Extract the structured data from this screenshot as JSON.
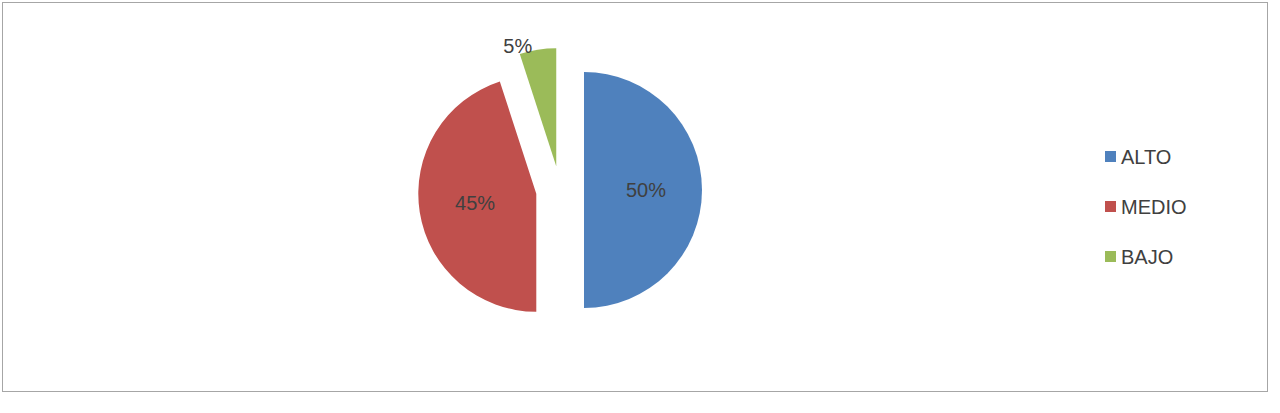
{
  "chart_data": {
    "type": "pie",
    "categories": [
      "ALTO",
      "MEDIO",
      "BAJO"
    ],
    "values": [
      50,
      45,
      5
    ],
    "value_labels": [
      "50%",
      "45%",
      "5%"
    ],
    "colors": [
      "#4f81bd",
      "#c0504d",
      "#9bbb59"
    ],
    "data_labels": true,
    "legend": "right"
  }
}
